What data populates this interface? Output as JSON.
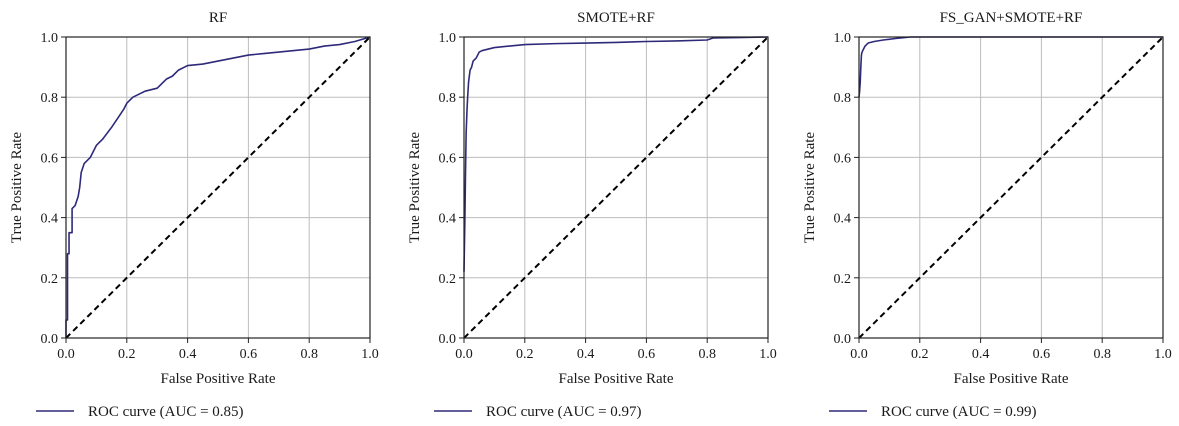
{
  "colors": {
    "roc": "#2e2a7a",
    "diagonal": "#000000",
    "grid": "#bdbdbd",
    "axis": "#222222"
  },
  "chart_data": [
    {
      "type": "line",
      "title": "RF",
      "xlabel": "False Positive Rate",
      "ylabel": "True Positive Rate",
      "xlim": [
        0,
        1
      ],
      "ylim": [
        0,
        1
      ],
      "xticks": [
        "0.0",
        "0.2",
        "0.4",
        "0.6",
        "0.8",
        "1.0"
      ],
      "yticks": [
        "0.0",
        "0.2",
        "0.4",
        "0.6",
        "0.8",
        "1.0"
      ],
      "grid": true,
      "legend_position": "bottom",
      "series": [
        {
          "name": "ROC curve (AUC = 0.85)",
          "x": [
            0,
            0,
            0.005,
            0.005,
            0.01,
            0.01,
            0.02,
            0.02,
            0.03,
            0.04,
            0.045,
            0.05,
            0.06,
            0.08,
            0.09,
            0.1,
            0.12,
            0.15,
            0.17,
            0.19,
            0.2,
            0.22,
            0.24,
            0.26,
            0.3,
            0.33,
            0.35,
            0.37,
            0.4,
            0.45,
            0.5,
            0.55,
            0.6,
            0.65,
            0.7,
            0.75,
            0.8,
            0.85,
            0.9,
            0.95,
            1.0
          ],
          "y": [
            0,
            0.06,
            0.06,
            0.28,
            0.28,
            0.35,
            0.35,
            0.43,
            0.44,
            0.47,
            0.5,
            0.55,
            0.58,
            0.6,
            0.62,
            0.64,
            0.66,
            0.7,
            0.73,
            0.76,
            0.78,
            0.8,
            0.81,
            0.82,
            0.83,
            0.86,
            0.87,
            0.89,
            0.905,
            0.91,
            0.92,
            0.93,
            0.94,
            0.945,
            0.95,
            0.955,
            0.96,
            0.97,
            0.975,
            0.985,
            1.0
          ]
        },
        {
          "name": "",
          "style": "dashed",
          "x": [
            0,
            1
          ],
          "y": [
            0,
            1
          ]
        }
      ],
      "legend": [
        "ROC curve (AUC = 0.85)"
      ]
    },
    {
      "type": "line",
      "title": "SMOTE+RF",
      "xlabel": "False Positive Rate",
      "ylabel": "True Positive Rate",
      "xlim": [
        0,
        1
      ],
      "ylim": [
        0,
        1
      ],
      "xticks": [
        "0.0",
        "0.2",
        "0.4",
        "0.6",
        "0.8",
        "1.0"
      ],
      "yticks": [
        "0.0",
        "0.2",
        "0.4",
        "0.6",
        "0.8",
        "1.0"
      ],
      "grid": true,
      "legend_position": "bottom",
      "series": [
        {
          "name": "ROC curve (AUC = 0.97)",
          "x": [
            0,
            0.003,
            0.005,
            0.007,
            0.01,
            0.012,
            0.015,
            0.02,
            0.025,
            0.03,
            0.04,
            0.05,
            0.06,
            0.08,
            0.1,
            0.15,
            0.2,
            0.3,
            0.4,
            0.5,
            0.6,
            0.7,
            0.8,
            0.82,
            0.9,
            1.0
          ],
          "y": [
            0.22,
            0.4,
            0.55,
            0.68,
            0.76,
            0.8,
            0.85,
            0.89,
            0.9,
            0.92,
            0.93,
            0.95,
            0.955,
            0.96,
            0.965,
            0.97,
            0.975,
            0.978,
            0.98,
            0.982,
            0.985,
            0.987,
            0.99,
            0.997,
            0.998,
            1.0
          ]
        },
        {
          "name": "",
          "style": "dashed",
          "x": [
            0,
            1
          ],
          "y": [
            0,
            1
          ]
        }
      ],
      "legend": [
        "ROC curve (AUC = 0.97)"
      ]
    },
    {
      "type": "line",
      "title": "FS_GAN+SMOTE+RF",
      "xlabel": "False Positive Rate",
      "ylabel": "True Positive Rate",
      "xlim": [
        0,
        1
      ],
      "ylim": [
        0,
        1
      ],
      "xticks": [
        "0.0",
        "0.2",
        "0.4",
        "0.6",
        "0.8",
        "1.0"
      ],
      "yticks": [
        "0.0",
        "0.2",
        "0.4",
        "0.6",
        "0.8",
        "1.0"
      ],
      "grid": true,
      "legend_position": "bottom",
      "series": [
        {
          "name": "ROC curve (AUC = 0.99)",
          "x": [
            0,
            0.002,
            0.004,
            0.006,
            0.008,
            0.01,
            0.015,
            0.02,
            0.03,
            0.05,
            0.08,
            0.12,
            0.17,
            0.25,
            0.4,
            0.6,
            1.0
          ],
          "y": [
            0.8,
            0.82,
            0.85,
            0.9,
            0.94,
            0.95,
            0.96,
            0.97,
            0.98,
            0.985,
            0.99,
            0.995,
            1.0,
            1.0,
            1.0,
            1.0,
            1.0
          ]
        },
        {
          "name": "",
          "style": "dashed",
          "x": [
            0,
            1
          ],
          "y": [
            0,
            1
          ]
        }
      ],
      "legend": [
        "ROC curve (AUC = 0.99)"
      ]
    }
  ]
}
